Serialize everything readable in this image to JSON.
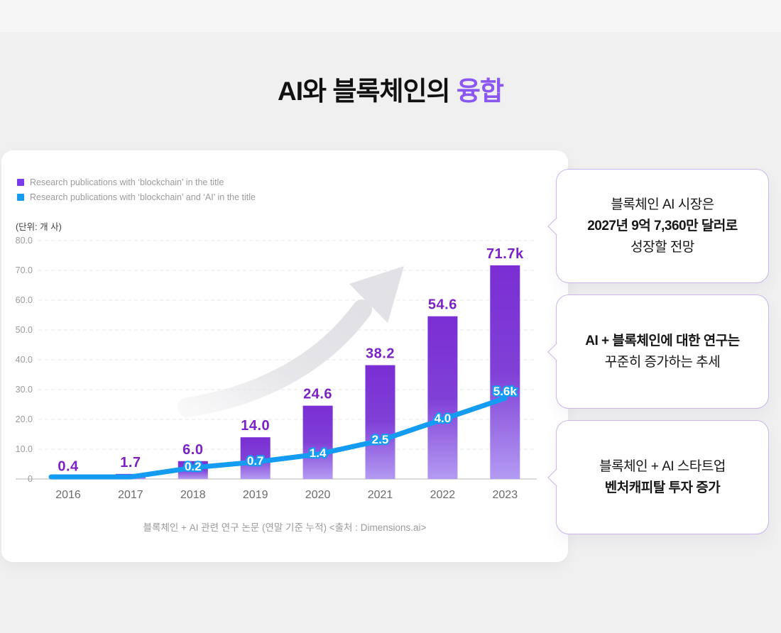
{
  "page": {
    "background": "#F0F0F0",
    "top_strip_color": "#F6F6F6"
  },
  "title": {
    "prefix": "AI와 블록체인의 ",
    "accent": "융합",
    "accent_color": "#8B57F3",
    "text_color": "#111111"
  },
  "chart_card": {
    "legend": [
      {
        "label": "Research publications with ‘blockchain’ in the title",
        "color": "#7C3AED"
      },
      {
        "label": "Research publications with ‘blockchain’ and ‘AI’ in the title",
        "color": "#149CF2"
      }
    ],
    "unit_label": "(단위: 개 사)",
    "caption": "블록체인 + AI 관련 연구 논문 (연말 기준 누적) <출처 : Dimensions.ai>"
  },
  "chart_data": {
    "type": "bar",
    "categories": [
      "2016",
      "2017",
      "2018",
      "2019",
      "2020",
      "2021",
      "2022",
      "2023"
    ],
    "series": [
      {
        "name": "Research publications with ‘blockchain’ in the title",
        "type": "bar",
        "values": [
          0.4,
          1.7,
          6.0,
          14.0,
          24.6,
          38.2,
          54.6,
          71.7
        ],
        "labels": [
          "0.4",
          "1.7",
          "6.0",
          "14.0",
          "24.6",
          "38.2",
          "54.6",
          "71.7k"
        ],
        "label_color": "#7B22C5",
        "bar_gradient_top": "#7A2ED3",
        "bar_gradient_bottom": "#B39BF2"
      },
      {
        "name": "Research publications with ‘blockchain’ and ‘AI’ in the title",
        "type": "line",
        "labels": [
          null,
          null,
          "0.2",
          "0.7",
          "1.4",
          "2.5",
          "4.0",
          "5.6k"
        ],
        "plot_values": [
          0.7,
          0.7,
          3.8,
          5.7,
          8.3,
          12.9,
          20.0,
          27.1
        ],
        "line_color": "#149CF2",
        "label_text_color": "#FFFFFF"
      }
    ],
    "ylim": [
      0,
      80
    ],
    "ytick_labels": [
      "80.0",
      "70.0",
      "60.0",
      "50.0",
      "40.0",
      "30.0",
      "20.0",
      "10.0",
      "0"
    ],
    "ytick_values": [
      80,
      70,
      60,
      50,
      40,
      30,
      20,
      10,
      0
    ],
    "grid": "dashed-horizontal",
    "legend_position": "top-left",
    "annotations": [
      "upward trend arrow (decorative, gray)"
    ]
  },
  "callouts": [
    {
      "lines": [
        {
          "text": "블록체인 AI 시장은",
          "bold": false
        },
        {
          "text": "2027년 9억 7,360만 달러로",
          "bold": true
        },
        {
          "text": "성장할 전망",
          "bold": false
        }
      ]
    },
    {
      "lines": [
        {
          "text": "AI + 블록체인에 대한 연구는",
          "bold": true
        },
        {
          "text": "꾸준히 증가하는 추세",
          "bold": false
        }
      ]
    },
    {
      "lines": [
        {
          "text": "블록체인 + AI 스타트업",
          "bold": false
        },
        {
          "text": "벤처캐피탈 투자 증가",
          "bold": true
        }
      ]
    }
  ]
}
